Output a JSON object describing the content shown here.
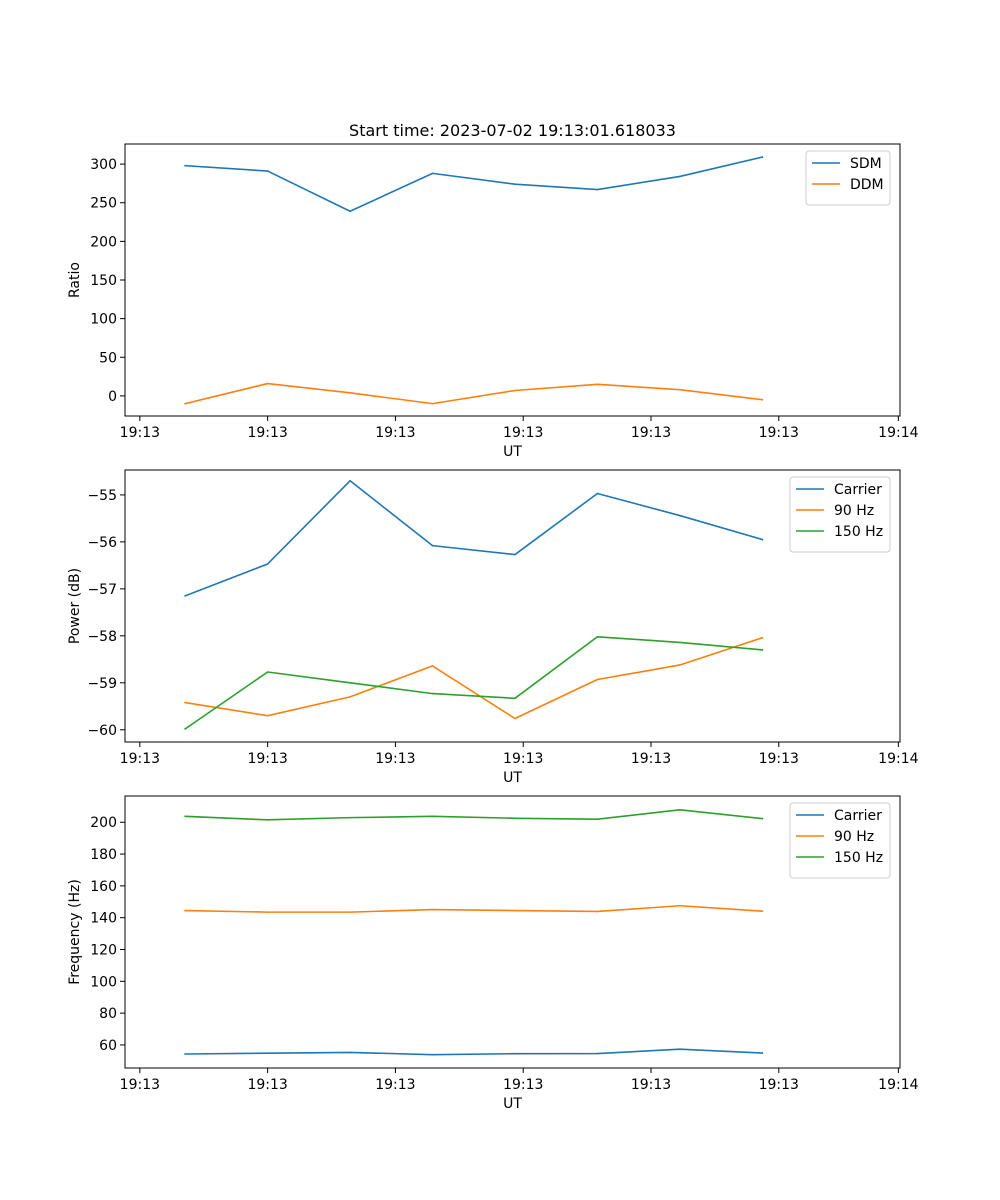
{
  "figure": {
    "title": "Start time: 2023-07-02 19:13:01.618033"
  },
  "colors": {
    "blue": "#1f77b4",
    "orange": "#ff7f0e",
    "green": "#2ca02c"
  },
  "chart_data": [
    {
      "type": "line",
      "title": "Start time: 2023-07-02 19:13:01.618033",
      "xlabel": "UT",
      "ylabel": "Ratio",
      "x": [
        1,
        2,
        3,
        4,
        5,
        6,
        7,
        8
      ],
      "xlim": [
        0.27,
        9.67
      ],
      "xticks": [
        0.45,
        2,
        3.55,
        5.1,
        6.65,
        8.2,
        9.65
      ],
      "xtick_labels": [
        "19:13",
        "19:13",
        "19:13",
        "19:13",
        "19:13",
        "19:13",
        "19:14"
      ],
      "ylim": [
        -26,
        326
      ],
      "yticks": [
        0,
        50,
        100,
        150,
        200,
        250,
        300
      ],
      "ytick_labels": [
        "0",
        "50",
        "100",
        "150",
        "200",
        "250",
        "300"
      ],
      "legend": "top-right",
      "series": [
        {
          "name": "SDM",
          "color": "#1f77b4",
          "values": [
            298,
            291,
            239,
            288,
            274,
            267,
            284,
            309
          ]
        },
        {
          "name": "DDM",
          "color": "#ff7f0e",
          "values": [
            -10,
            16,
            4,
            -10,
            7,
            15,
            8,
            -5
          ]
        }
      ]
    },
    {
      "type": "line",
      "title": "",
      "xlabel": "UT",
      "ylabel": "Power (dB)",
      "x": [
        1,
        2,
        3,
        4,
        5,
        6,
        7,
        8
      ],
      "xlim": [
        0.27,
        9.67
      ],
      "xticks": [
        0.45,
        2,
        3.55,
        5.1,
        6.65,
        8.2,
        9.65
      ],
      "xtick_labels": [
        "19:13",
        "19:13",
        "19:13",
        "19:13",
        "19:13",
        "19:13",
        "19:14"
      ],
      "ylim": [
        -60.26,
        -54.47
      ],
      "yticks": [
        -60,
        -59,
        -58,
        -57,
        -56,
        -55
      ],
      "ytick_labels": [
        "−60",
        "−59",
        "−58",
        "−57",
        "−56",
        "−55"
      ],
      "legend": "top-right",
      "series": [
        {
          "name": "Carrier",
          "color": "#1f77b4",
          "values": [
            -57.15,
            -56.47,
            -54.7,
            -56.08,
            -56.27,
            -54.97,
            -55.44,
            -55.95
          ]
        },
        {
          "name": "90 Hz",
          "color": "#ff7f0e",
          "values": [
            -59.42,
            -59.7,
            -59.3,
            -58.64,
            -59.76,
            -58.93,
            -58.62,
            -58.04
          ]
        },
        {
          "name": "150 Hz",
          "color": "#2ca02c",
          "values": [
            -59.98,
            -58.77,
            -59.0,
            -59.23,
            -59.33,
            -58.02,
            -58.14,
            -58.3
          ]
        }
      ]
    },
    {
      "type": "line",
      "title": "",
      "xlabel": "UT",
      "ylabel": "Frequency (Hz)",
      "x": [
        1,
        2,
        3,
        4,
        5,
        6,
        7,
        8
      ],
      "xlim": [
        0.27,
        9.67
      ],
      "xticks": [
        0.45,
        2,
        3.55,
        5.1,
        6.65,
        8.2,
        9.65
      ],
      "xtick_labels": [
        "19:13",
        "19:13",
        "19:13",
        "19:13",
        "19:13",
        "19:13",
        "19:14"
      ],
      "ylim": [
        45.5,
        216.5
      ],
      "yticks": [
        60,
        80,
        100,
        120,
        140,
        160,
        180,
        200
      ],
      "ytick_labels": [
        "60",
        "80",
        "100",
        "120",
        "140",
        "160",
        "180",
        "200"
      ],
      "legend": "top-right",
      "series": [
        {
          "name": "Carrier",
          "color": "#1f77b4",
          "values": [
            54.3,
            54.8,
            55.3,
            53.9,
            54.5,
            54.6,
            57.3,
            54.9
          ]
        },
        {
          "name": "90 Hz",
          "color": "#ff7f0e",
          "values": [
            144.5,
            143.5,
            143.5,
            145.1,
            144.5,
            143.9,
            147.5,
            144.1
          ]
        },
        {
          "name": "150 Hz",
          "color": "#2ca02c",
          "values": [
            203.7,
            201.5,
            202.9,
            203.7,
            202.5,
            201.9,
            207.8,
            202.3
          ]
        }
      ]
    }
  ]
}
